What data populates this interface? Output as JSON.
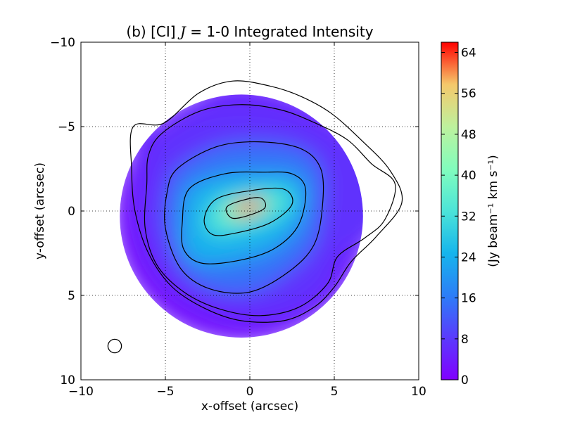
{
  "chart_data": {
    "type": "heatmap",
    "title": "(b) [CI] J = 1-0 Integrated Intensity",
    "title_prefix": "(b) [CI] ",
    "title_italic": "J",
    "title_suffix": " = 1-0 Integrated Intensity",
    "xlabel": "x-offset (arcsec)",
    "ylabel": "y-offset (arcsec)",
    "xlim": [
      -10,
      10
    ],
    "ylim": [
      -10,
      10
    ],
    "y_axis_inverted": true,
    "x_ticks": [
      -10,
      -5,
      0,
      5,
      10
    ],
    "y_ticks": [
      -10,
      -5,
      0,
      5,
      10
    ],
    "x_tick_labels": [
      "−10",
      "−5",
      "0",
      "5",
      "10"
    ],
    "y_tick_labels": [
      "−10",
      "−5",
      "0",
      "5",
      "10"
    ],
    "grid": true,
    "colormap": "rainbow",
    "colorbar": {
      "label": "(Jy beam⁻¹ km s⁻¹)",
      "range": [
        0,
        66
      ],
      "ticks": [
        0,
        8,
        16,
        24,
        32,
        40,
        48,
        56,
        64
      ],
      "tick_labels": [
        "0",
        "8",
        "16",
        "24",
        "32",
        "40",
        "48",
        "56",
        "64"
      ]
    },
    "map_extent": {
      "center": [
        -0.5,
        0.3
      ],
      "radius": 7.2
    },
    "intensity_peak": {
      "x": 0.0,
      "y": -0.2,
      "value": 63
    },
    "beam": {
      "x": -8.0,
      "y": 8.0,
      "radius": 0.4
    },
    "contours": [
      {
        "level_index": 1,
        "points": [
          [
            -6.9,
            -5.0
          ],
          [
            -5.1,
            -5.2
          ],
          [
            -3.0,
            -7.0
          ],
          [
            -1.0,
            -7.7
          ],
          [
            1.2,
            -7.4
          ],
          [
            3.0,
            -6.8
          ],
          [
            4.8,
            -5.8
          ],
          [
            6.6,
            -4.2
          ],
          [
            8.3,
            -2.4
          ],
          [
            9.0,
            -0.5
          ],
          [
            7.5,
            1.5
          ],
          [
            6.0,
            3.0
          ],
          [
            5.0,
            4.5
          ],
          [
            3.8,
            5.7
          ],
          [
            2.0,
            6.5
          ],
          [
            -0.5,
            6.5
          ],
          [
            -2.6,
            5.8
          ],
          [
            -4.6,
            4.5
          ],
          [
            -6.0,
            2.5
          ],
          [
            -6.8,
            0.0
          ],
          [
            -7.0,
            -2.5
          ]
        ]
      },
      {
        "level_index": 2,
        "points": [
          [
            -5.2,
            -4.6
          ],
          [
            -3.0,
            -5.9
          ],
          [
            -0.6,
            -6.3
          ],
          [
            1.8,
            -6.0
          ],
          [
            3.9,
            -5.2
          ],
          [
            5.8,
            -4.2
          ],
          [
            7.2,
            -2.8
          ],
          [
            8.6,
            -1.6
          ],
          [
            8.0,
            0.5
          ],
          [
            6.8,
            1.6
          ],
          [
            5.2,
            2.7
          ],
          [
            4.6,
            4.3
          ],
          [
            2.9,
            5.7
          ],
          [
            0.6,
            6.2
          ],
          [
            -1.8,
            5.8
          ],
          [
            -3.9,
            4.8
          ],
          [
            -5.5,
            3.2
          ],
          [
            -6.2,
            1.0
          ],
          [
            -6.1,
            -1.6
          ],
          [
            -6.0,
            -3.3
          ]
        ]
      },
      {
        "level_index": 3,
        "points": [
          [
            -4.3,
            -2.5
          ],
          [
            -2.0,
            -3.8
          ],
          [
            0.5,
            -4.1
          ],
          [
            3.0,
            -3.7
          ],
          [
            4.2,
            -2.5
          ],
          [
            4.3,
            -0.3
          ],
          [
            3.8,
            2.0
          ],
          [
            2.3,
            3.6
          ],
          [
            0.0,
            4.8
          ],
          [
            -2.4,
            4.6
          ],
          [
            -4.1,
            3.4
          ],
          [
            -5.0,
            1.0
          ],
          [
            -4.9,
            -1.1
          ]
        ]
      },
      {
        "level_index": 4,
        "points": [
          [
            -3.6,
            -1.3
          ],
          [
            -1.5,
            -2.2
          ],
          [
            0.8,
            -2.3
          ],
          [
            2.5,
            -2.2
          ],
          [
            3.3,
            -1.3
          ],
          [
            2.9,
            0.8
          ],
          [
            1.5,
            2.2
          ],
          [
            -0.5,
            2.9
          ],
          [
            -2.8,
            3.1
          ],
          [
            -3.9,
            2.3
          ],
          [
            -4.0,
            0.7
          ]
        ]
      },
      {
        "level_index": 5,
        "points": [
          [
            -2.0,
            -0.7
          ],
          [
            0.0,
            -1.2
          ],
          [
            2.0,
            -1.3
          ],
          [
            2.5,
            -0.4
          ],
          [
            1.2,
            0.7
          ],
          [
            -0.8,
            1.3
          ],
          [
            -2.2,
            1.4
          ],
          [
            -2.7,
            0.5
          ]
        ]
      },
      {
        "level_index": 6,
        "points": [
          [
            -1.3,
            -0.3
          ],
          [
            0.5,
            -0.8
          ],
          [
            0.9,
            -0.2
          ],
          [
            -0.2,
            0.3
          ],
          [
            -1.1,
            0.4
          ]
        ]
      }
    ]
  }
}
